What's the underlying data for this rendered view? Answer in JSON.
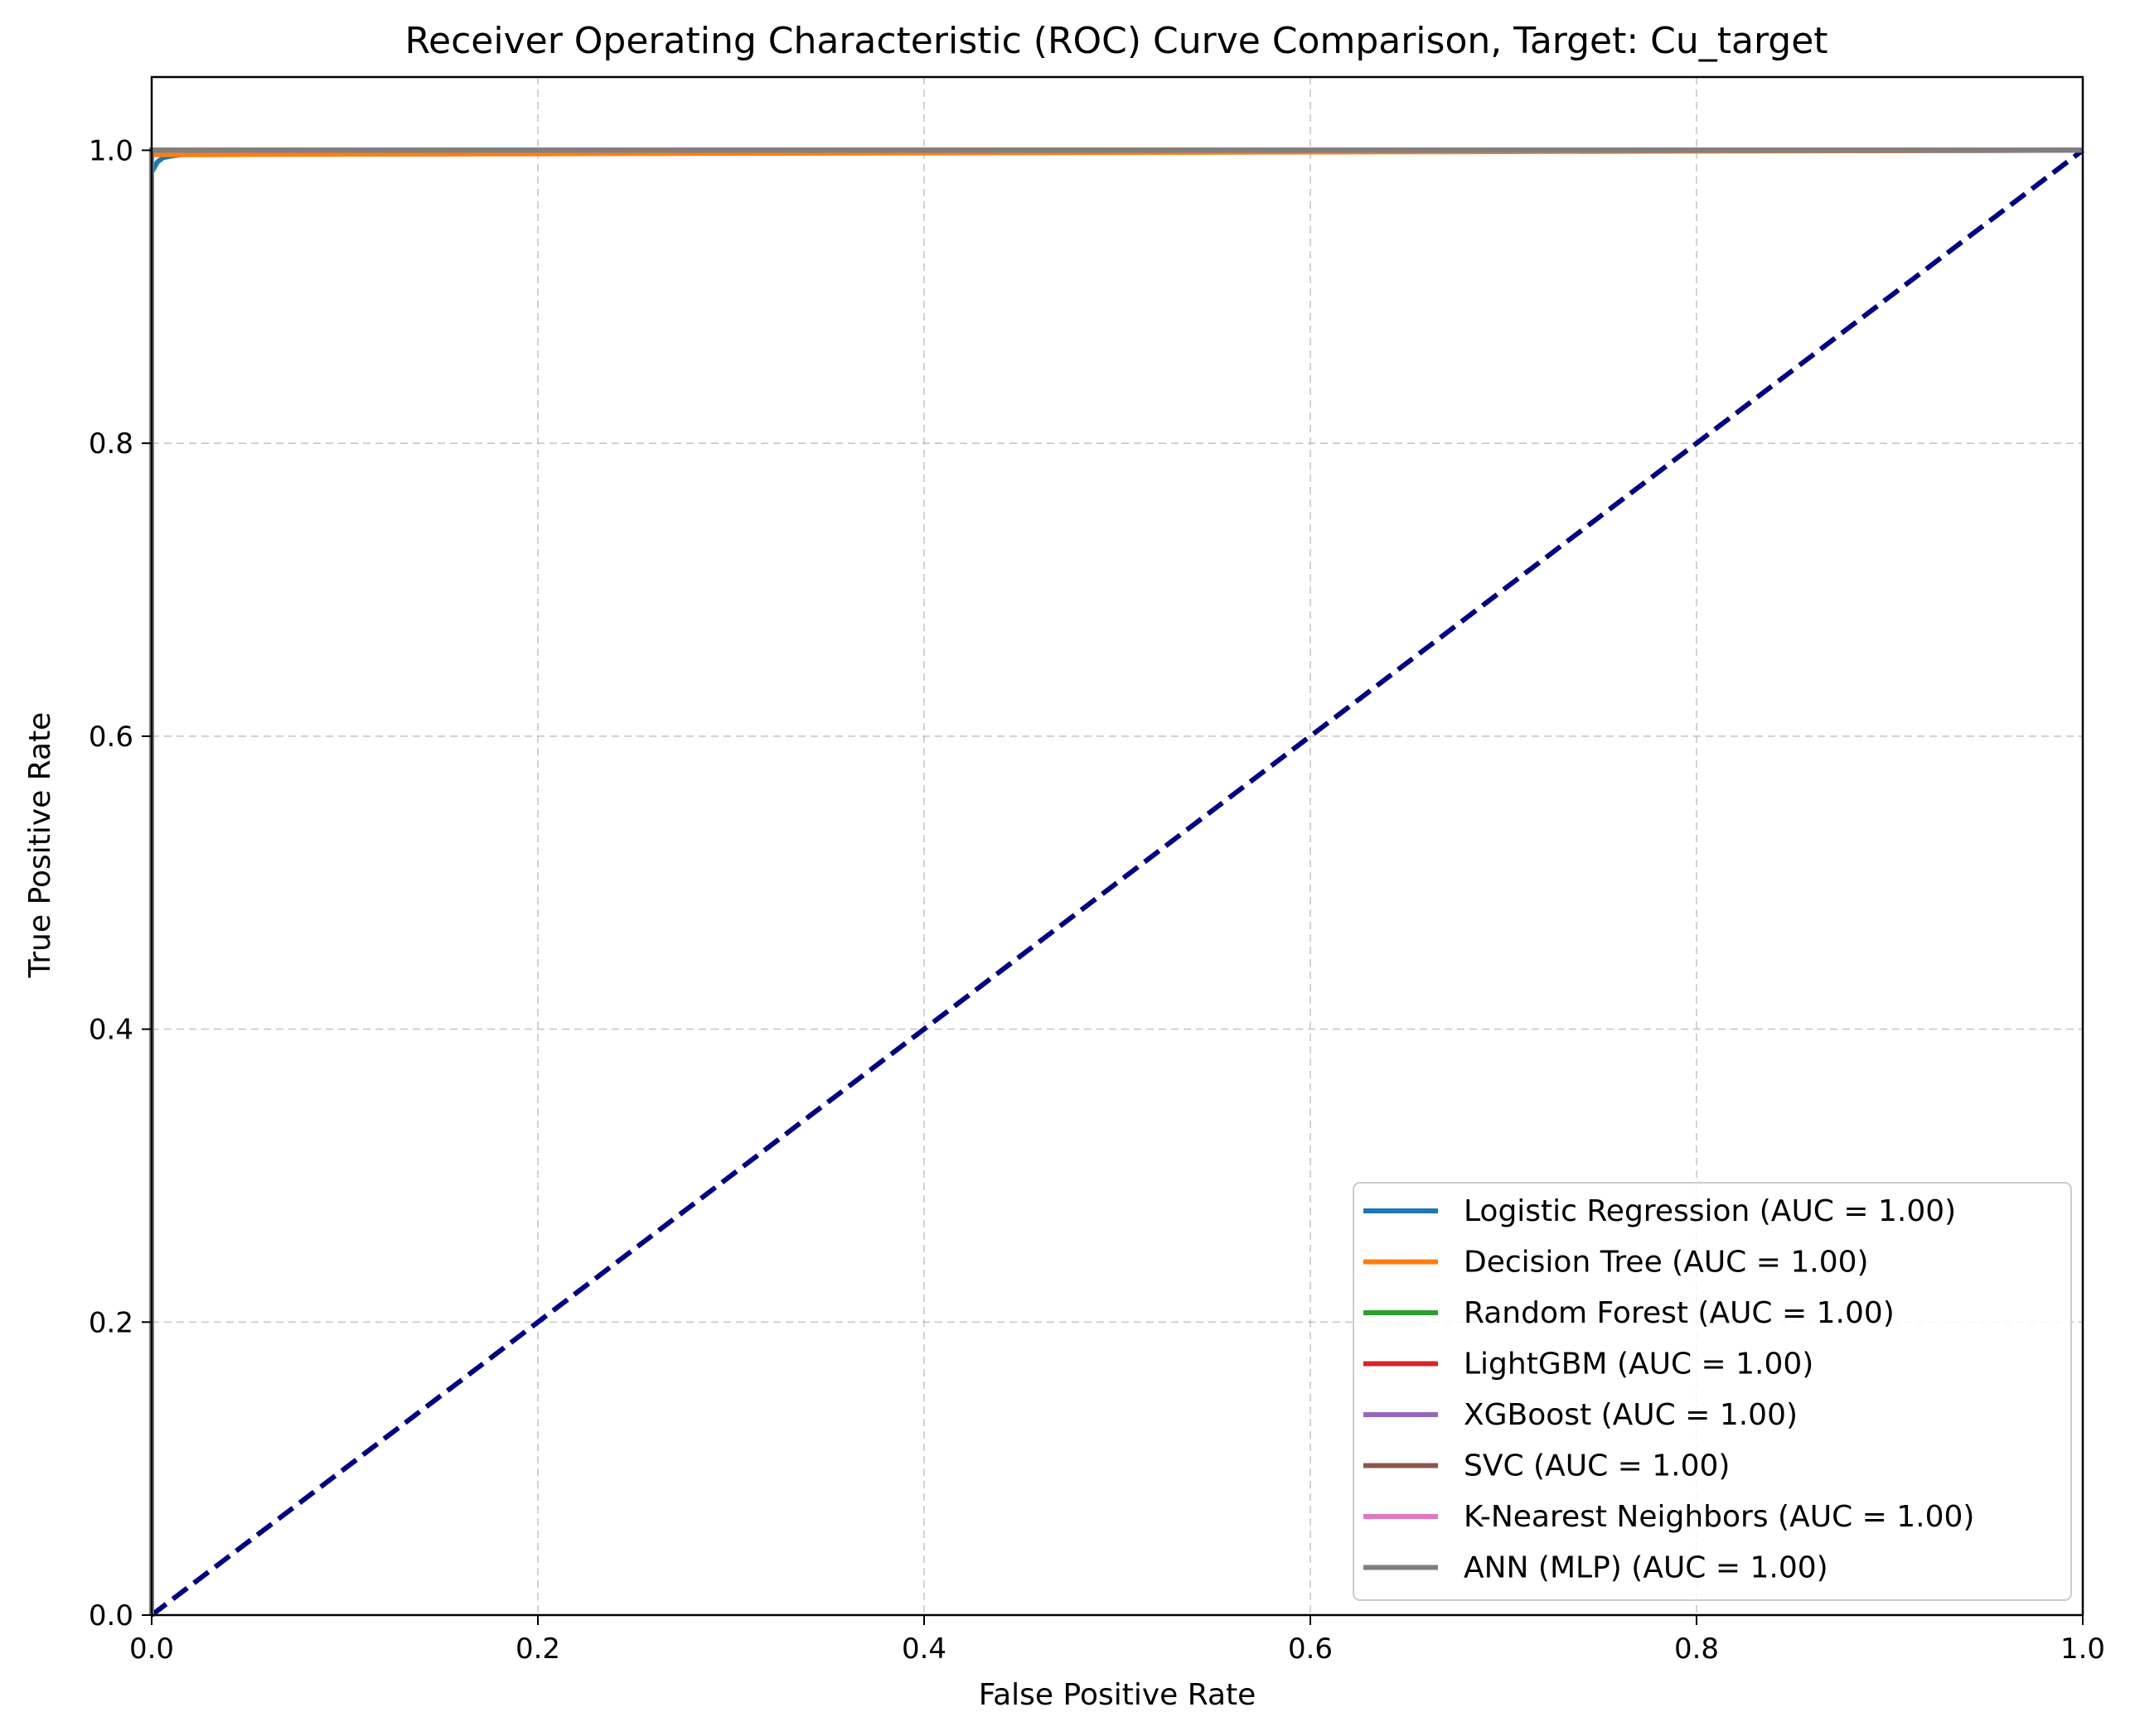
{
  "chart_data": {
    "type": "line",
    "title": "Receiver Operating Characteristic (ROC) Curve Comparison, Target: Cu_target",
    "xlabel": "False Positive Rate",
    "ylabel": "True Positive Rate",
    "xlim": [
      0.0,
      1.0
    ],
    "ylim": [
      0.0,
      1.05
    ],
    "x_ticks": [
      {
        "value": 0.0,
        "label": "0.0"
      },
      {
        "value": 0.2,
        "label": "0.2"
      },
      {
        "value": 0.4,
        "label": "0.4"
      },
      {
        "value": 0.6,
        "label": "0.6"
      },
      {
        "value": 0.8,
        "label": "0.8"
      },
      {
        "value": 1.0,
        "label": "1.0"
      }
    ],
    "y_ticks": [
      {
        "value": 0.0,
        "label": "0.0"
      },
      {
        "value": 0.2,
        "label": "0.2"
      },
      {
        "value": 0.4,
        "label": "0.4"
      },
      {
        "value": 0.6,
        "label": "0.6"
      },
      {
        "value": 0.8,
        "label": "0.8"
      },
      {
        "value": 1.0,
        "label": "1.0"
      }
    ],
    "grid": true,
    "legend_position": "lower right",
    "series": [
      {
        "name": "Logistic Regression (AUC = 1.00)",
        "color": "#1f77b4",
        "points": [
          [
            0.0,
            0.0
          ],
          [
            0.0,
            0.985
          ],
          [
            0.003,
            0.992
          ],
          [
            0.006,
            0.995
          ],
          [
            0.01,
            0.996
          ],
          [
            0.02,
            0.998
          ],
          [
            1.0,
            1.0
          ]
        ]
      },
      {
        "name": "Decision Tree (AUC = 1.00)",
        "color": "#ff7f0e",
        "points": [
          [
            0.0,
            0.0
          ],
          [
            0.0,
            0.997
          ],
          [
            1.0,
            1.0
          ]
        ]
      },
      {
        "name": "Random Forest (AUC = 1.00)",
        "color": "#2ca02c",
        "points": [
          [
            0.0,
            0.0
          ],
          [
            0.0,
            1.0
          ],
          [
            1.0,
            1.0
          ]
        ]
      },
      {
        "name": "LightGBM (AUC = 1.00)",
        "color": "#d62728",
        "points": [
          [
            0.0,
            0.0
          ],
          [
            0.0,
            1.0
          ],
          [
            1.0,
            1.0
          ]
        ]
      },
      {
        "name": "XGBoost (AUC = 1.00)",
        "color": "#9467bd",
        "points": [
          [
            0.0,
            0.0
          ],
          [
            0.0,
            1.0
          ],
          [
            1.0,
            1.0
          ]
        ]
      },
      {
        "name": "SVC (AUC = 1.00)",
        "color": "#8c564b",
        "points": [
          [
            0.0,
            0.0
          ],
          [
            0.0,
            1.0
          ],
          [
            1.0,
            1.0
          ]
        ]
      },
      {
        "name": "K-Nearest Neighbors (AUC = 1.00)",
        "color": "#e377c2",
        "points": [
          [
            0.0,
            0.0
          ],
          [
            0.0,
            1.0
          ],
          [
            1.0,
            1.0
          ]
        ]
      },
      {
        "name": "ANN (MLP) (AUC = 1.00)",
        "color": "#7f7f7f",
        "points": [
          [
            0.0,
            0.0
          ],
          [
            0.0,
            1.0
          ],
          [
            1.0,
            1.0
          ]
        ]
      }
    ],
    "reference_line": {
      "color": "#000080",
      "style": "dashed",
      "points": [
        [
          0.0,
          0.0
        ],
        [
          1.0,
          1.0
        ]
      ]
    }
  }
}
